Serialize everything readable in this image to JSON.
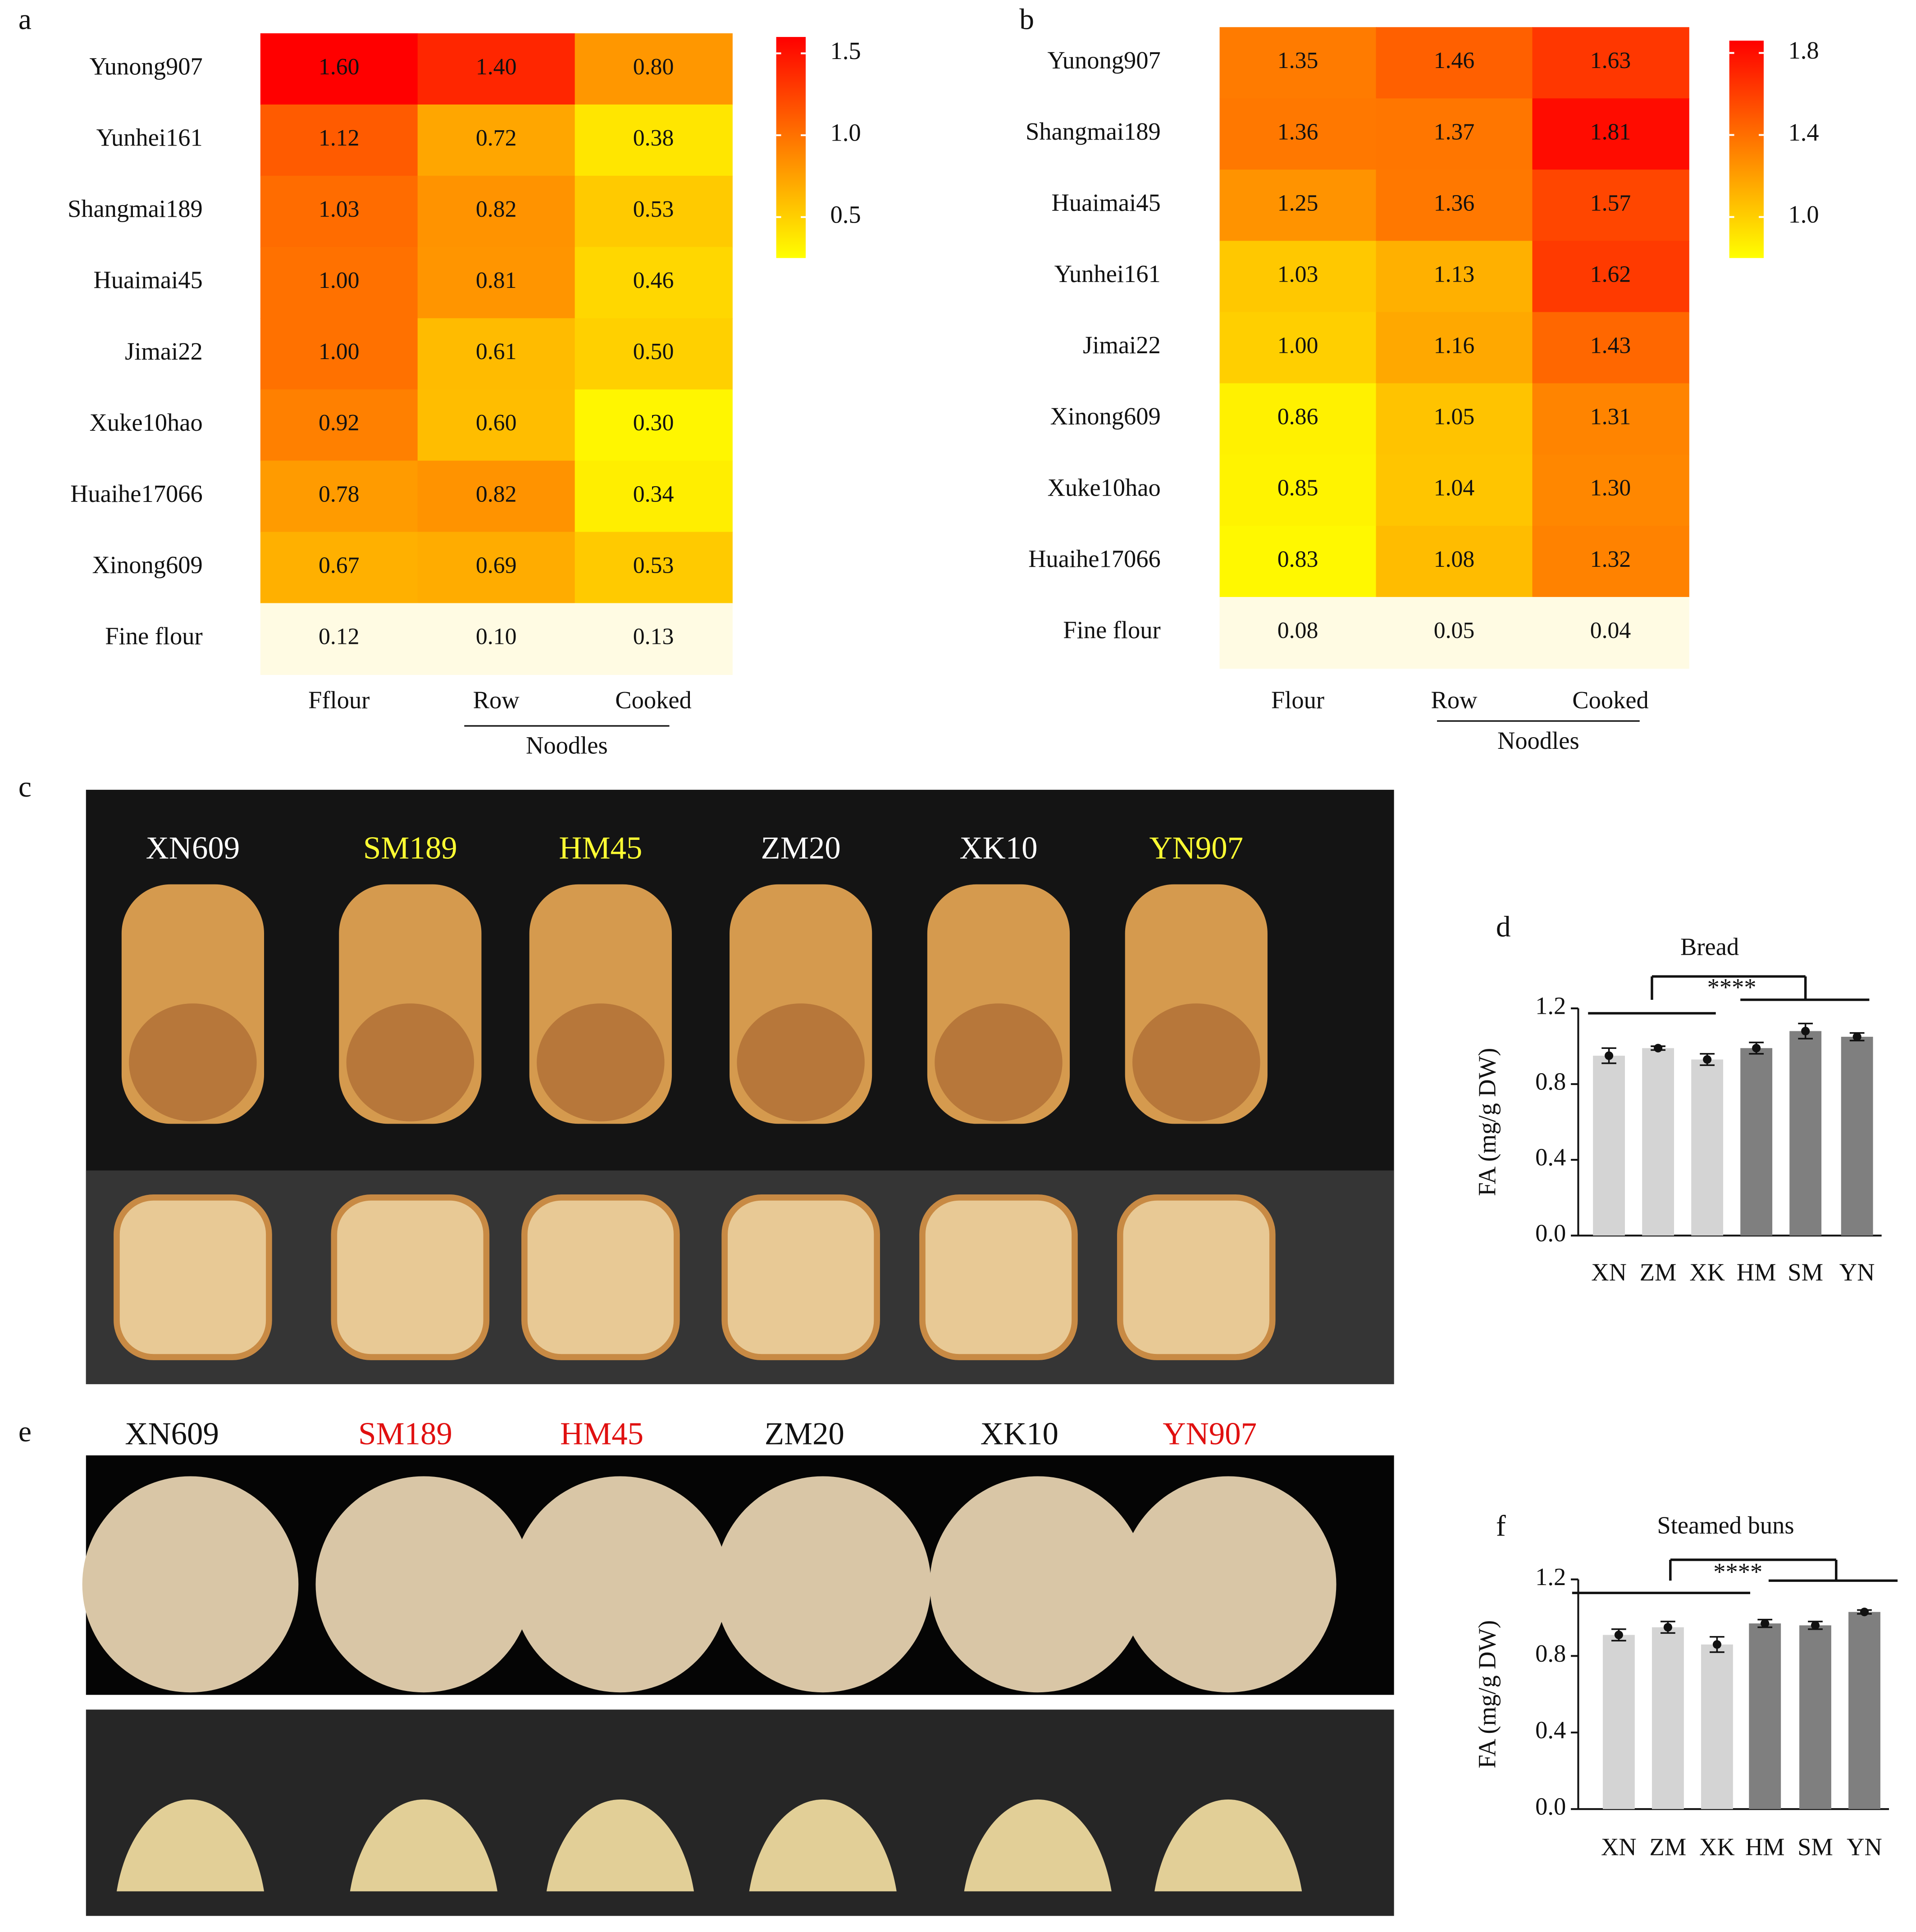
{
  "chart_data": [
    {
      "type": "heatmap",
      "panel": "a",
      "rows": [
        "Yunong907",
        "Yunhei161",
        "Shangmai189",
        "Huaimai45",
        "Jimai22",
        "Xuke10hao",
        "Huaihe17066",
        "Xinong609",
        "Fine flour"
      ],
      "columns": [
        "Fflour",
        "Row",
        "Cooked"
      ],
      "column_group": "Noodles",
      "values": [
        [
          1.6,
          1.4,
          0.8
        ],
        [
          1.12,
          0.72,
          0.38
        ],
        [
          1.03,
          0.82,
          0.53
        ],
        [
          1.0,
          0.81,
          0.46
        ],
        [
          1.0,
          0.61,
          0.5
        ],
        [
          0.92,
          0.6,
          0.3
        ],
        [
          0.78,
          0.82,
          0.34
        ],
        [
          0.67,
          0.69,
          0.53
        ],
        [
          0.12,
          0.1,
          0.13
        ]
      ],
      "value_labels": [
        [
          "1.60",
          "1.40",
          "0.80"
        ],
        [
          "1.12",
          "0.72",
          "0.38"
        ],
        [
          "1.03",
          "0.82",
          "0.53"
        ],
        [
          "1.00",
          "0.81",
          "0.46"
        ],
        [
          "1.00",
          "0.61",
          "0.50"
        ],
        [
          "0.92",
          "0.60",
          "0.30"
        ],
        [
          "0.78",
          "0.82",
          "0.34"
        ],
        [
          "0.67",
          "0.69",
          "0.53"
        ],
        [
          "0.12",
          "0.10",
          "0.13"
        ]
      ],
      "clim": [
        0.25,
        1.6
      ],
      "cticks": [
        1.5,
        {
          "value": 1,
          "label": "1.0"
        },
        0.5
      ],
      "under_color": "#fffbe3"
    },
    {
      "type": "heatmap",
      "panel": "b",
      "rows": [
        "Yunong907",
        "Shangmai189",
        "Huaimai45",
        "Yunhei161",
        "Jimai22",
        "Xinong609",
        "Xuke10hao",
        "Huaihe17066",
        "Fine flour"
      ],
      "columns": [
        "Flour",
        "Row",
        "Cooked"
      ],
      "column_group": "Noodles",
      "values": [
        [
          1.35,
          1.46,
          1.63
        ],
        [
          1.36,
          1.37,
          1.81
        ],
        [
          1.25,
          1.36,
          1.57
        ],
        [
          1.03,
          1.13,
          1.62
        ],
        [
          1.0,
          1.16,
          1.43
        ],
        [
          0.86,
          1.05,
          1.31
        ],
        [
          0.85,
          1.04,
          1.3
        ],
        [
          0.83,
          1.08,
          1.32
        ],
        [
          0.08,
          0.05,
          0.04
        ]
      ],
      "value_labels": [
        [
          "1.35",
          "1.46",
          "1.63"
        ],
        [
          "1.36",
          "1.37",
          "1.81"
        ],
        [
          "1.25",
          "1.36",
          "1.57"
        ],
        [
          "1.03",
          "1.13",
          "1.62"
        ],
        [
          "1.00",
          "1.16",
          "1.43"
        ],
        [
          "0.86",
          "1.05",
          "1.31"
        ],
        [
          "0.85",
          "1.04",
          "1.30"
        ],
        [
          "0.83",
          "1.08",
          "1.32"
        ],
        [
          "0.08",
          "0.05",
          "0.04"
        ]
      ],
      "clim": [
        0.8,
        1.86
      ],
      "cticks": [
        1.8,
        1.4,
        {
          "value": 1,
          "label": "1.0"
        }
      ],
      "under_color": "#fffbe3"
    },
    {
      "type": "bar",
      "panel": "d",
      "title": "Bread",
      "y_label": "FA (mg/g DW)",
      "categories": [
        "XN",
        "ZM",
        "XK",
        "HM",
        "SM",
        "YN"
      ],
      "values": [
        0.95,
        0.99,
        0.93,
        0.99,
        1.08,
        1.05
      ],
      "errors": [
        0.04,
        0.01,
        0.03,
        0.03,
        0.04,
        0.02
      ],
      "colors": [
        "#d4d4d4",
        "#d4d4d4",
        "#d4d4d4",
        "#7f7f7f",
        "#7f7f7f",
        "#7f7f7f"
      ],
      "ylim": [
        0,
        1.2
      ],
      "yticks": [
        {
          "value": 0,
          "label": "0.0"
        },
        0.4,
        0.8,
        1.2
      ],
      "significance": "****"
    },
    {
      "type": "bar",
      "panel": "f",
      "title": "Steamed buns",
      "y_label": "FA (mg/g DW)",
      "categories": [
        "XN",
        "ZM",
        "XK",
        "HM",
        "SM",
        "YN"
      ],
      "values": [
        0.91,
        0.95,
        0.86,
        0.97,
        0.96,
        1.03
      ],
      "errors": [
        0.03,
        0.03,
        0.04,
        0.02,
        0.02,
        0.01
      ],
      "colors": [
        "#d4d4d4",
        "#d4d4d4",
        "#d4d4d4",
        "#7f7f7f",
        "#7f7f7f",
        "#7f7f7f"
      ],
      "ylim": [
        0,
        1.2
      ],
      "yticks": [
        {
          "value": 0,
          "label": "0.0"
        },
        0.4,
        0.8,
        1.2
      ],
      "significance": "****"
    }
  ],
  "photos": [
    {
      "panel": "c",
      "labels": [
        "XN609",
        "SM189",
        "HM45",
        "ZM20",
        "XK10",
        "YN907"
      ],
      "label_colors": [
        "#ffffff",
        "#ffff33",
        "#ffff33",
        "#ffffff",
        "#ffffff",
        "#ffff33"
      ]
    },
    {
      "panel": "e",
      "labels": [
        "XN609",
        "SM189",
        "HM45",
        "ZM20",
        "XK10",
        "YN907"
      ],
      "label_colors": [
        "#111111",
        "#e01010",
        "#e01010",
        "#111111",
        "#111111",
        "#e01010"
      ]
    }
  ]
}
